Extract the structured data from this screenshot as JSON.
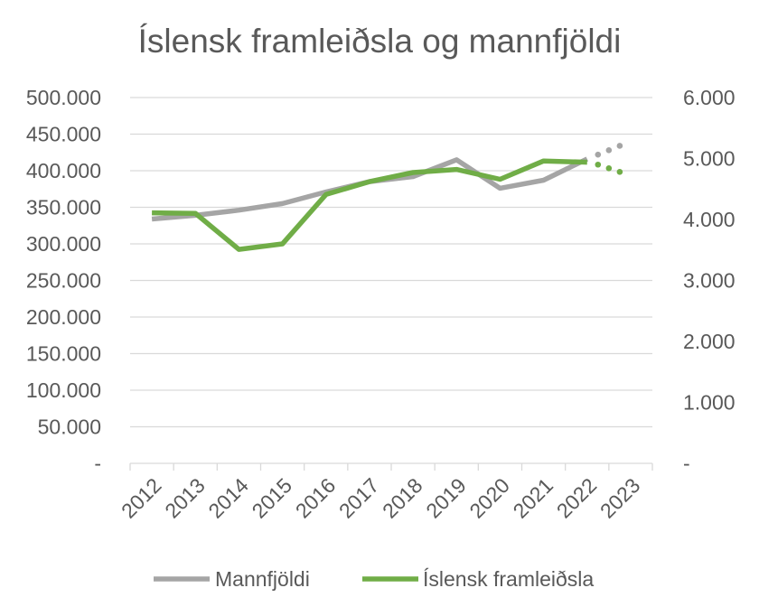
{
  "chart_data": {
    "type": "line",
    "title": "Íslensk framleiðsla og mannfjöldi",
    "categories": [
      "2012",
      "2013",
      "2014",
      "2015",
      "2016",
      "2017",
      "2018",
      "2019",
      "2020",
      "2021",
      "2022",
      "2023"
    ],
    "y_left": {
      "ylim": [
        0,
        500000
      ],
      "tick_labels": [
        "500.000",
        "450.000",
        "400.000",
        "350.000",
        "300.000",
        "250.000",
        "200.000",
        "150.000",
        "100.000",
        "50.000",
        "-"
      ]
    },
    "y_right": {
      "ylim": [
        0,
        6000
      ],
      "tick_labels": [
        "6.000",
        "5.000",
        "4.000",
        "3.000",
        "2.000",
        "1.000",
        "-"
      ]
    },
    "grid": true,
    "legend_position": "bottom",
    "series": [
      {
        "name": "Mannfjöldi",
        "axis": "left",
        "color": "#a5a5a5",
        "values": [
          334000,
          339000,
          346000,
          355000,
          371000,
          385000,
          392000,
          415000,
          376000,
          387000,
          416000,
          null
        ],
        "projection": [
          {
            "x": 10.25,
            "y": 422000
          },
          {
            "x": 10.5,
            "y": 428000
          },
          {
            "x": 10.75,
            "y": 434000
          }
        ]
      },
      {
        "name": "Íslensk framleiðsla",
        "axis": "right",
        "color": "#70ad47",
        "values": [
          4110,
          4100,
          3510,
          3600,
          4410,
          4620,
          4770,
          4820,
          4660,
          4960,
          4940,
          null
        ],
        "projection": [
          {
            "x": 10.25,
            "y": 4900
          },
          {
            "x": 10.5,
            "y": 4840
          },
          {
            "x": 10.75,
            "y": 4780
          }
        ]
      }
    ]
  }
}
